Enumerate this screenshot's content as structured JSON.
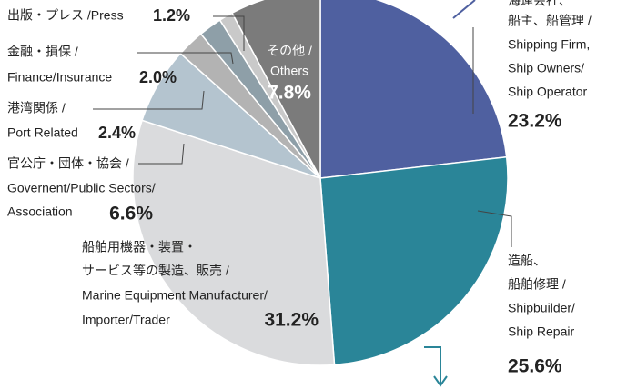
{
  "chart_data": {
    "type": "pie",
    "categories": [
      [
        "海運会社、",
        "船主、船管理 /",
        "Shipping Firm,",
        "Ship Owners/",
        "Ship Operator"
      ],
      [
        "造船、",
        "船舶修理 /",
        "Shipbuilder/",
        "Ship Repair"
      ],
      [
        "船舶用機器・装置・",
        "サービス等の製造、販売 /",
        "Marine Equipment Manufacturer/",
        "Importer/Trader"
      ],
      [
        "官公庁・団体・協会 /",
        "Governent/Public Sectors/",
        "Association"
      ],
      [
        "港湾関係 /",
        "Port Related"
      ],
      [
        "金融・損保 /",
        "Finance/Insurance"
      ],
      [
        "出版・プレス /Press"
      ],
      [
        "その他 /",
        "Others"
      ]
    ],
    "values": [
      23.2,
      25.6,
      31.2,
      6.6,
      2.4,
      2.0,
      1.2,
      7.8
    ],
    "value_labels": [
      "23.2%",
      "25.6%",
      "31.2%",
      "6.6%",
      "2.4%",
      "2.0%",
      "1.2%",
      "7.8%"
    ],
    "colors": [
      "#4f60a0",
      "#2a8598",
      "#dadbdd",
      "#b4c4cf",
      "#b3b3b3",
      "#8e9fa8",
      "#c9c9c9",
      "#7b7b7b"
    ]
  }
}
